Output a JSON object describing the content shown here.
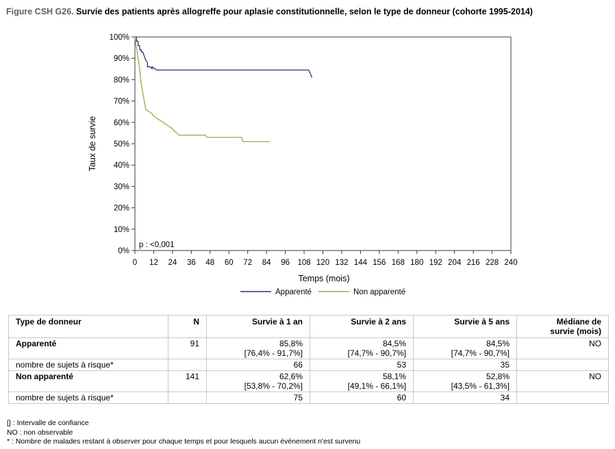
{
  "figure": {
    "title_lead": "Figure CSH G26.",
    "title_rest": " Survie des patients après allogreffe pour aplasie constitutionnelle, selon le type de donneur (cohorte 1995-2014)"
  },
  "chart_data": {
    "type": "line",
    "title": "",
    "xlabel": "Temps (mois)",
    "ylabel": "Taux de survie",
    "xlim": [
      0,
      240
    ],
    "ylim": [
      0,
      100
    ],
    "x_ticks": [
      "0",
      "12",
      "24",
      "36",
      "48",
      "60",
      "72",
      "84",
      "96",
      "108",
      "120",
      "132",
      "144",
      "156",
      "168",
      "180",
      "192",
      "204",
      "216",
      "228",
      "240"
    ],
    "y_ticks": [
      "0%",
      "10%",
      "20%",
      "30%",
      "40%",
      "50%",
      "60%",
      "70%",
      "80%",
      "90%",
      "100%"
    ],
    "grid": false,
    "legend_position": "bottom",
    "annotation": "p : <0,001",
    "series": [
      {
        "name": "Apparenté",
        "color": "#2e2e7a",
        "points": [
          [
            0,
            100
          ],
          [
            1,
            100
          ],
          [
            1,
            98
          ],
          [
            2,
            98
          ],
          [
            2,
            96
          ],
          [
            3,
            96
          ],
          [
            3,
            94
          ],
          [
            4,
            94
          ],
          [
            4,
            93
          ],
          [
            5,
            93
          ],
          [
            6,
            91
          ],
          [
            7,
            89
          ],
          [
            8,
            88
          ],
          [
            8,
            86
          ],
          [
            10,
            86
          ],
          [
            11,
            85
          ],
          [
            11,
            86
          ],
          [
            13,
            85
          ],
          [
            14,
            84.5
          ],
          [
            111,
            84.5
          ],
          [
            113,
            81
          ]
        ]
      },
      {
        "name": "Non apparenté",
        "color": "#8ab43c",
        "points": [
          [
            0,
            100
          ],
          [
            1,
            95
          ],
          [
            2,
            90
          ],
          [
            3,
            85
          ],
          [
            4,
            78
          ],
          [
            5,
            74
          ],
          [
            6,
            70
          ],
          [
            7,
            66
          ],
          [
            9,
            65
          ],
          [
            11,
            64
          ],
          [
            12,
            63
          ],
          [
            14,
            62
          ],
          [
            16,
            61
          ],
          [
            18,
            60
          ],
          [
            20,
            59
          ],
          [
            22,
            58
          ],
          [
            24,
            57
          ],
          [
            25,
            56
          ],
          [
            27,
            55
          ],
          [
            28,
            54
          ],
          [
            45,
            54
          ],
          [
            46,
            53
          ],
          [
            68,
            53
          ],
          [
            69,
            51
          ],
          [
            86,
            51
          ]
        ]
      }
    ]
  },
  "table": {
    "headers": [
      "Type de donneur",
      "N",
      "Survie à 1 an",
      "Survie à 2 ans",
      "Survie à 5 ans",
      "Médiane de",
      "survie (mois)"
    ],
    "rows": [
      {
        "label": "Apparenté",
        "n": "91",
        "y1": "85,8%",
        "y1_ci": "[76,4% - 91,7%]",
        "y2": "84,5%",
        "y2_ci": "[74,7% - 90,7%]",
        "y5": "84,5%",
        "y5_ci": "[74,7% - 90,7%]",
        "median": "NO",
        "risk_label": "nombre de sujets à risque*",
        "risk": [
          "66",
          "53",
          "35"
        ]
      },
      {
        "label": "Non apparenté",
        "n": "141",
        "y1": "62,6%",
        "y1_ci": "[53,8% - 70,2%]",
        "y2": "58,1%",
        "y2_ci": "[49,1% - 66,1%]",
        "y5": "52,8%",
        "y5_ci": "[43,5% - 61,3%]",
        "median": "NO",
        "risk_label": "nombre de sujets à risque*",
        "risk": [
          "75",
          "60",
          "34"
        ]
      }
    ]
  },
  "footnotes": [
    "[] : Intervalle de confiance",
    "NO : non observable",
    "* : Nombre de malades restant à observer pour chaque temps et pour lesquels aucun évènement n'est survenu"
  ]
}
